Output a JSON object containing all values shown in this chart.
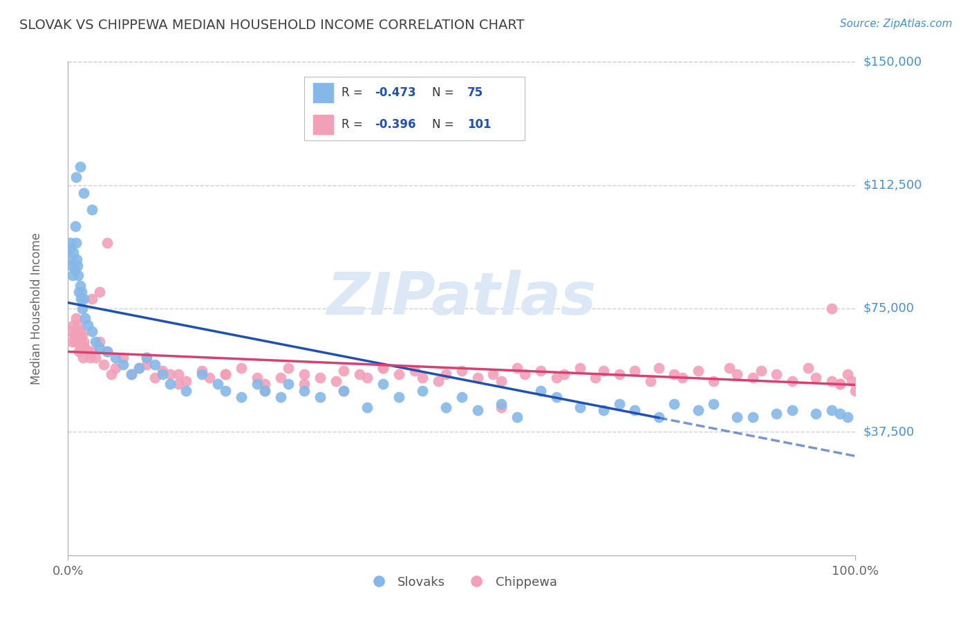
{
  "title": "SLOVAK VS CHIPPEWA MEDIAN HOUSEHOLD INCOME CORRELATION CHART",
  "source_text": "Source: ZipAtlas.com",
  "ylabel": "Median Household Income",
  "xlim": [
    0.0,
    100.0
  ],
  "ylim": [
    0,
    150000
  ],
  "yticks": [
    0,
    37500,
    75000,
    112500,
    150000
  ],
  "ytick_labels": [
    "",
    "$37,500",
    "$75,000",
    "$112,500",
    "$150,000"
  ],
  "background_color": "#ffffff",
  "grid_color": "#c8c8d8",
  "watermark_text": "ZIPatlas",
  "watermark_color": "#dce8f5",
  "color_slovak": "#85b8e8",
  "color_chippewa": "#f2a0b8",
  "color_line_slovak": "#2050b0",
  "color_line_chippewa": "#d84070",
  "color_ytick_labels": "#4a90d0",
  "color_title": "#404040",
  "color_source": "#4a90d0",
  "color_xtick": "#666666",
  "slovak_x": [
    0.2,
    0.3,
    0.4,
    0.5,
    0.6,
    0.7,
    0.8,
    0.9,
    1.0,
    1.1,
    1.2,
    1.3,
    1.4,
    1.5,
    1.6,
    1.7,
    1.8,
    2.0,
    2.2,
    2.5,
    3.0,
    3.5,
    4.0,
    5.0,
    6.0,
    7.0,
    8.0,
    9.0,
    10.0,
    11.0,
    12.0,
    13.0,
    15.0,
    17.0,
    19.0,
    20.0,
    22.0,
    24.0,
    25.0,
    27.0,
    28.0,
    30.0,
    32.0,
    35.0,
    38.0,
    40.0,
    42.0,
    45.0,
    48.0,
    50.0,
    52.0,
    55.0,
    57.0,
    60.0,
    62.0,
    65.0,
    68.0,
    70.0,
    72.0,
    75.0,
    77.0,
    80.0,
    82.0,
    85.0,
    87.0,
    90.0,
    92.0,
    95.0,
    97.0,
    98.0,
    99.0,
    1.0,
    1.5,
    2.0,
    3.0
  ],
  "slovak_y": [
    93000,
    95000,
    90000,
    88000,
    85000,
    92000,
    87000,
    100000,
    95000,
    90000,
    88000,
    85000,
    80000,
    82000,
    78000,
    80000,
    75000,
    78000,
    72000,
    70000,
    68000,
    65000,
    63000,
    62000,
    60000,
    58000,
    55000,
    57000,
    60000,
    58000,
    55000,
    52000,
    50000,
    55000,
    52000,
    50000,
    48000,
    52000,
    50000,
    48000,
    52000,
    50000,
    48000,
    50000,
    45000,
    52000,
    48000,
    50000,
    45000,
    48000,
    44000,
    46000,
    42000,
    50000,
    48000,
    45000,
    44000,
    46000,
    44000,
    42000,
    46000,
    44000,
    46000,
    42000,
    42000,
    43000,
    44000,
    43000,
    44000,
    43000,
    42000,
    115000,
    118000,
    110000,
    105000
  ],
  "chippewa_x": [
    0.3,
    0.5,
    0.7,
    0.8,
    0.9,
    1.0,
    1.1,
    1.2,
    1.3,
    1.4,
    1.5,
    1.6,
    1.7,
    1.8,
    1.9,
    2.0,
    2.2,
    2.5,
    2.8,
    3.0,
    3.5,
    4.0,
    4.5,
    5.0,
    5.5,
    6.0,
    7.0,
    8.0,
    9.0,
    10.0,
    11.0,
    12.0,
    13.0,
    14.0,
    15.0,
    17.0,
    18.0,
    20.0,
    22.0,
    24.0,
    25.0,
    27.0,
    28.0,
    30.0,
    32.0,
    34.0,
    35.0,
    37.0,
    38.0,
    40.0,
    42.0,
    44.0,
    45.0,
    47.0,
    48.0,
    50.0,
    52.0,
    54.0,
    55.0,
    57.0,
    58.0,
    60.0,
    62.0,
    63.0,
    65.0,
    67.0,
    68.0,
    70.0,
    72.0,
    74.0,
    75.0,
    77.0,
    78.0,
    80.0,
    82.0,
    84.0,
    85.0,
    87.0,
    88.0,
    90.0,
    92.0,
    94.0,
    95.0,
    97.0,
    98.0,
    99.0,
    99.5,
    100.0,
    3.0,
    4.0,
    5.0,
    10.0,
    14.0,
    20.0,
    25.0,
    30.0,
    35.0,
    40.0,
    55.0,
    97.0,
    98.0
  ],
  "chippewa_y": [
    68000,
    65000,
    70000,
    67000,
    65000,
    72000,
    68000,
    65000,
    70000,
    62000,
    68000,
    65000,
    63000,
    67000,
    60000,
    65000,
    63000,
    62000,
    60000,
    62000,
    60000,
    65000,
    58000,
    62000,
    55000,
    57000,
    60000,
    55000,
    57000,
    58000,
    54000,
    56000,
    55000,
    52000,
    53000,
    56000,
    54000,
    55000,
    57000,
    54000,
    52000,
    54000,
    57000,
    55000,
    54000,
    53000,
    56000,
    55000,
    54000,
    57000,
    55000,
    56000,
    54000,
    53000,
    55000,
    56000,
    54000,
    55000,
    53000,
    57000,
    55000,
    56000,
    54000,
    55000,
    57000,
    54000,
    56000,
    55000,
    56000,
    53000,
    57000,
    55000,
    54000,
    56000,
    53000,
    57000,
    55000,
    54000,
    56000,
    55000,
    53000,
    57000,
    54000,
    53000,
    52000,
    55000,
    53000,
    50000,
    78000,
    80000,
    95000,
    60000,
    55000,
    55000,
    50000,
    52000,
    50000,
    57000,
    45000,
    75000,
    52000
  ]
}
